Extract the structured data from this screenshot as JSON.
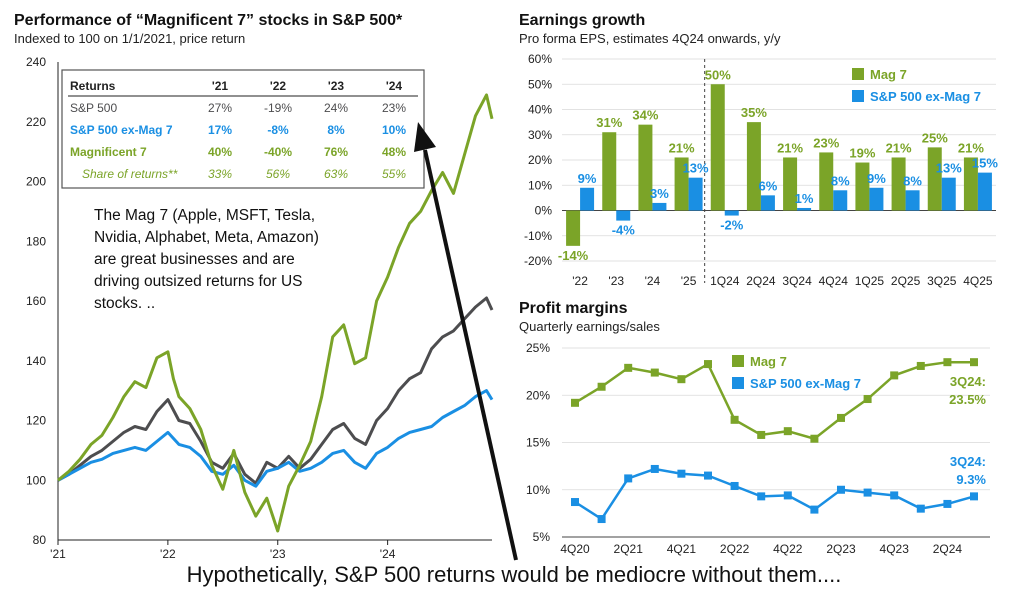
{
  "caption": "Hypothetically, S&P 500 returns would be mediocre without them....",
  "note": "The Mag 7 (Apple, MSFT, Tesla, Nvidia, Alphabet, Meta, Amazon) are great businesses and are driving outsized returns for US stocks. ..",
  "colors": {
    "mag7": "#7ba428",
    "sp500": "#4d4d4f",
    "exmag7": "#1a8fe3",
    "grid": "#d9d9d9"
  },
  "chart_data": [
    {
      "type": "line",
      "title": "Performance of “Magnificent 7” stocks in S&P 500*",
      "subtitle": "Indexed to 100 on 1/1/2021, price return",
      "ylim": [
        80,
        240
      ],
      "yticks": [
        80,
        100,
        120,
        140,
        160,
        180,
        200,
        220,
        240
      ],
      "xlim": [
        2021.0,
        2024.95
      ],
      "xtick_labels": [
        {
          "value": 2021.0,
          "label": "'21"
        },
        {
          "value": 2022.0,
          "label": "'22"
        },
        {
          "value": 2023.0,
          "label": "'23"
        },
        {
          "value": 2024.0,
          "label": "'24"
        }
      ],
      "series": [
        {
          "name": "S&P 500",
          "color": "#4d4d4f",
          "x": [
            2021.0,
            2021.1,
            2021.2,
            2021.3,
            2021.4,
            2021.5,
            2021.6,
            2021.7,
            2021.8,
            2021.9,
            2022.0,
            2022.1,
            2022.2,
            2022.3,
            2022.4,
            2022.5,
            2022.6,
            2022.7,
            2022.8,
            2022.9,
            2023.0,
            2023.1,
            2023.2,
            2023.3,
            2023.4,
            2023.5,
            2023.6,
            2023.7,
            2023.8,
            2023.9,
            2024.0,
            2024.1,
            2024.2,
            2024.3,
            2024.4,
            2024.5,
            2024.6,
            2024.7,
            2024.8,
            2024.9,
            2024.95
          ],
          "y": [
            100,
            102,
            105,
            108,
            110,
            113,
            116,
            118,
            117,
            123,
            127,
            120,
            119,
            113,
            106,
            104,
            109,
            102,
            99,
            106,
            104,
            108,
            104,
            107,
            112,
            117,
            119,
            114,
            112,
            120,
            124,
            130,
            134,
            136,
            144,
            148,
            150,
            154,
            158,
            161,
            157
          ]
        },
        {
          "name": "S&P 500 ex-Mag 7",
          "color": "#1a8fe3",
          "x": [
            2021.0,
            2021.1,
            2021.2,
            2021.3,
            2021.4,
            2021.5,
            2021.6,
            2021.7,
            2021.8,
            2021.9,
            2022.0,
            2022.1,
            2022.2,
            2022.3,
            2022.4,
            2022.5,
            2022.6,
            2022.7,
            2022.8,
            2022.9,
            2023.0,
            2023.1,
            2023.2,
            2023.3,
            2023.4,
            2023.5,
            2023.6,
            2023.7,
            2023.8,
            2023.9,
            2024.0,
            2024.1,
            2024.2,
            2024.3,
            2024.4,
            2024.5,
            2024.6,
            2024.7,
            2024.8,
            2024.9,
            2024.95
          ],
          "y": [
            100,
            102,
            104,
            106,
            107,
            109,
            110,
            111,
            110,
            113,
            116,
            112,
            111,
            108,
            103,
            102,
            105,
            100,
            98,
            103,
            104,
            106,
            103,
            104,
            106,
            109,
            110,
            106,
            104,
            109,
            111,
            114,
            116,
            117,
            118,
            121,
            123,
            125,
            128,
            130,
            127
          ]
        },
        {
          "name": "Magnificent 7",
          "color": "#7ba428",
          "x": [
            2021.0,
            2021.1,
            2021.2,
            2021.3,
            2021.4,
            2021.5,
            2021.6,
            2021.7,
            2021.8,
            2021.9,
            2022.0,
            2022.05,
            2022.1,
            2022.2,
            2022.3,
            2022.4,
            2022.5,
            2022.6,
            2022.7,
            2022.8,
            2022.9,
            2023.0,
            2023.1,
            2023.2,
            2023.3,
            2023.4,
            2023.5,
            2023.6,
            2023.7,
            2023.8,
            2023.9,
            2024.0,
            2024.1,
            2024.2,
            2024.3,
            2024.4,
            2024.5,
            2024.6,
            2024.7,
            2024.8,
            2024.9,
            2024.95
          ],
          "y": [
            100,
            103,
            107,
            112,
            115,
            121,
            128,
            133,
            131,
            141,
            143,
            134,
            128,
            124,
            117,
            105,
            97,
            110,
            96,
            88,
            94,
            83,
            98,
            105,
            113,
            128,
            148,
            152,
            139,
            141,
            160,
            168,
            178,
            186,
            190,
            197,
            203,
            196,
            209,
            222,
            229,
            221
          ]
        }
      ],
      "table": {
        "headers": [
          "Returns",
          "'21",
          "'22",
          "'23",
          "'24"
        ],
        "rows": [
          {
            "label": "S&P 500",
            "values": [
              "27%",
              "-19%",
              "24%",
              "23%"
            ],
            "color": "#4d4d4f",
            "style": "plain"
          },
          {
            "label": "S&P 500 ex-Mag 7",
            "values": [
              "17%",
              "-8%",
              "8%",
              "10%"
            ],
            "color": "#1a8fe3",
            "style": "bold"
          },
          {
            "label": "Magnificent 7",
            "values": [
              "40%",
              "-40%",
              "76%",
              "48%"
            ],
            "color": "#7ba428",
            "style": "bold"
          },
          {
            "label": "Share of returns**",
            "values": [
              "33%",
              "56%",
              "63%",
              "55%"
            ],
            "color": "#7ba428",
            "style": "italic"
          }
        ]
      }
    },
    {
      "type": "bar",
      "title": "Earnings growth",
      "subtitle": "Pro forma EPS, estimates 4Q24 onwards, y/y",
      "categories": [
        "'22",
        "'23",
        "'24",
        "'25",
        "1Q24",
        "2Q24",
        "3Q24",
        "4Q24",
        "1Q25",
        "2Q25",
        "3Q25",
        "4Q25"
      ],
      "ylim": [
        -20,
        60
      ],
      "yticks": [
        -20,
        -10,
        0,
        10,
        20,
        30,
        40,
        50,
        60
      ],
      "series": [
        {
          "name": "Mag 7",
          "color": "#7ba428",
          "values": [
            -14,
            31,
            34,
            21,
            50,
            35,
            21,
            23,
            19,
            21,
            25,
            21
          ]
        },
        {
          "name": "S&P 500 ex-Mag 7",
          "color": "#1a8fe3",
          "values": [
            9,
            -4,
            3,
            13,
            -2,
            6,
            1,
            8,
            9,
            8,
            13,
            15
          ]
        }
      ],
      "value_labels": [
        {
          "mag7": "-14%",
          "ex": "9%"
        },
        {
          "mag7": "31%",
          "ex": "-4%"
        },
        {
          "mag7": "34%",
          "ex": "3%"
        },
        {
          "mag7": "21%",
          "ex": "13%"
        },
        {
          "mag7": "50%",
          "ex": "-2%"
        },
        {
          "mag7": "35%",
          "ex": "6%"
        },
        {
          "mag7": "21%",
          "ex": "1%"
        },
        {
          "mag7": "23%",
          "ex": "8%"
        },
        {
          "mag7": "19%",
          "ex": "9%"
        },
        {
          "mag7": "21%",
          "ex": "8%"
        },
        {
          "mag7": "25%",
          "ex": "13%"
        },
        {
          "mag7": "21%",
          "ex": "15%"
        }
      ],
      "legend": "top-right"
    },
    {
      "type": "line",
      "title": "Profit margins",
      "subtitle": "Quarterly earnings/sales",
      "x": [
        "4Q20",
        "1Q21",
        "2Q21",
        "3Q21",
        "4Q21",
        "1Q22",
        "2Q22",
        "3Q22",
        "4Q22",
        "1Q23",
        "2Q23",
        "3Q23",
        "4Q23",
        "1Q24",
        "2Q24",
        "3Q24"
      ],
      "xtick_labels": [
        "4Q20",
        "2Q21",
        "4Q21",
        "2Q22",
        "4Q22",
        "2Q23",
        "4Q23",
        "2Q24"
      ],
      "ylim": [
        5,
        25
      ],
      "ytick_labels": [
        "5%",
        "10%",
        "15%",
        "20%",
        "25%"
      ],
      "series": [
        {
          "name": "Mag 7",
          "color": "#7ba428",
          "values": [
            19.2,
            20.9,
            22.9,
            22.4,
            21.7,
            23.3,
            17.4,
            15.8,
            16.2,
            15.4,
            17.6,
            19.6,
            22.1,
            23.1,
            23.5,
            23.5
          ]
        },
        {
          "name": "S&P 500 ex-Mag 7",
          "color": "#1a8fe3",
          "values": [
            8.7,
            6.9,
            11.2,
            12.2,
            11.7,
            11.5,
            10.4,
            9.3,
            9.4,
            7.9,
            10.0,
            9.7,
            9.4,
            8.0,
            8.5,
            9.3
          ]
        }
      ],
      "end_labels": [
        {
          "series": "Mag 7",
          "lines": [
            "3Q24:",
            "23.5%"
          ]
        },
        {
          "series": "S&P 500 ex-Mag 7",
          "lines": [
            "3Q24:",
            "9.3%"
          ]
        }
      ],
      "legend": "top-left"
    }
  ]
}
